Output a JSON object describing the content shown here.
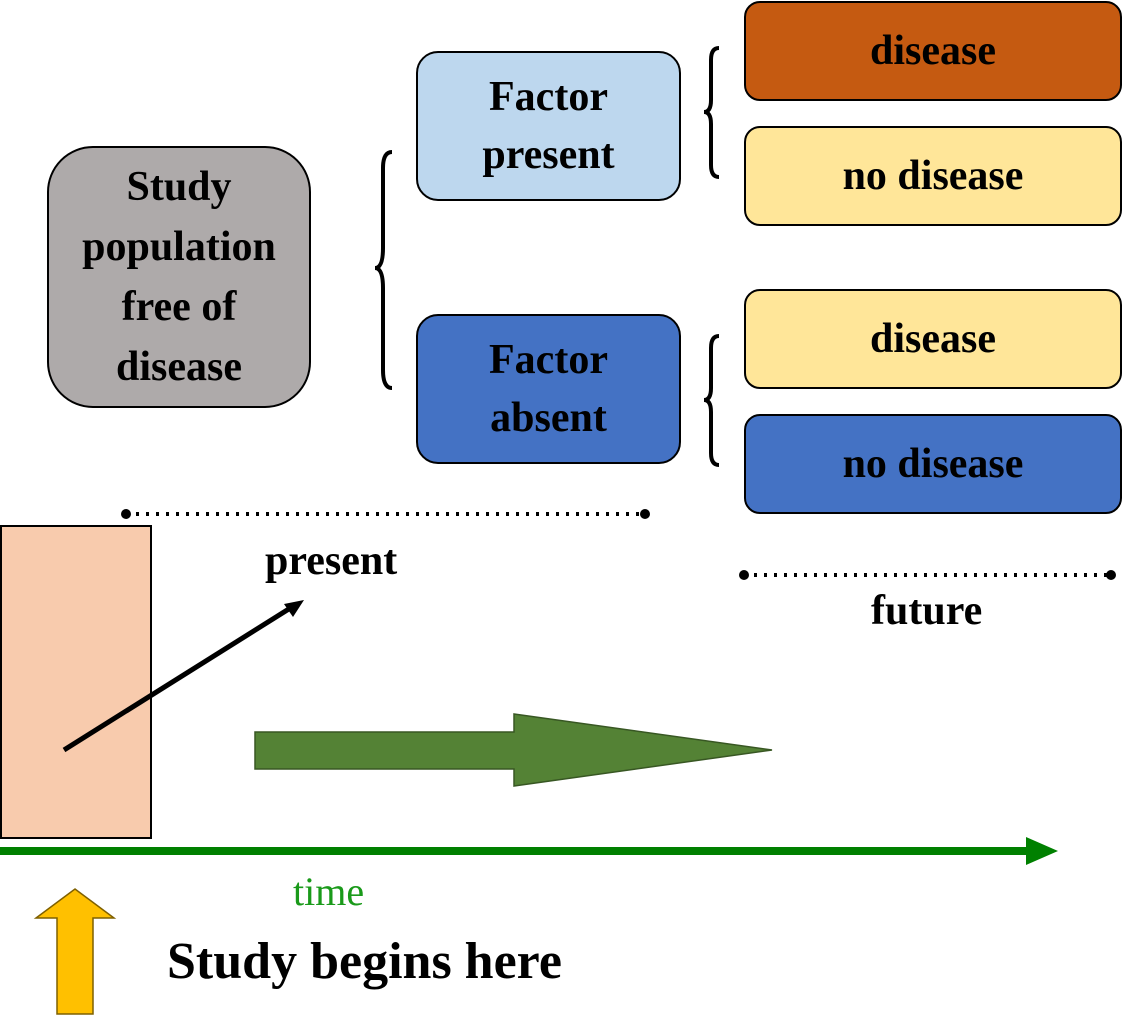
{
  "population": {
    "lines": [
      "Study",
      "population",
      "free of",
      "disease"
    ]
  },
  "factor_present": {
    "lines": [
      "Factor",
      "present"
    ]
  },
  "factor_absent": {
    "lines": [
      "Factor",
      "absent"
    ]
  },
  "outcomes": [
    {
      "label": "disease"
    },
    {
      "label": "no disease"
    },
    {
      "label": "disease"
    },
    {
      "label": "no disease"
    }
  ],
  "labels": {
    "present": "present",
    "future": "future",
    "time": "time",
    "begin": "Study begins here"
  },
  "colors": {
    "population_fill": "#aeaaaa",
    "factor_present_fill": "#bdd7ee",
    "factor_absent_fill": "#4472c4",
    "outcome_disease_exposed": "#c55a11",
    "outcome_neutral": "#ffe699",
    "outcome_no_disease_unexposed": "#4472c4",
    "study_window": "#f8cbad",
    "progress_arrow": "#548235",
    "time_axis": "#008000",
    "begin_arrow": "#ffc000"
  }
}
